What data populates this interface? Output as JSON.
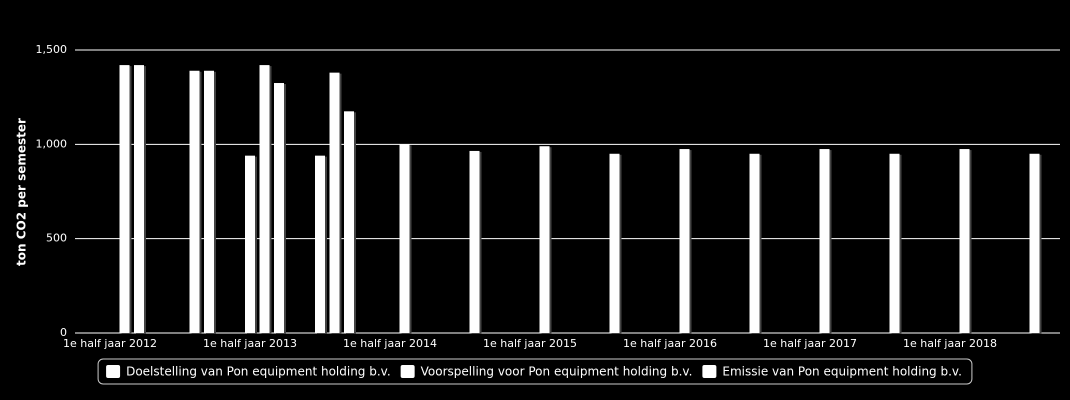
{
  "chart_data": {
    "type": "bar",
    "y_label": "ton CO2 per semester",
    "categories": [
      "1e half jaar 2012",
      null,
      "1e half jaar 2013",
      null,
      "1e half jaar 2014",
      null,
      "1e half jaar 2015",
      null,
      "1e half jaar 2016",
      null,
      "1e half jaar 2017",
      null,
      "1e half jaar 2018",
      null
    ],
    "series": [
      {
        "name": "Doelstelling van Pon equipment holding b.v.",
        "color": "#ffffff",
        "values": [
          null,
          null,
          940,
          940,
          null,
          null,
          null,
          null,
          null,
          null,
          null,
          null,
          null,
          null
        ]
      },
      {
        "name": "Voorspelling voor Pon equipment holding b.v.",
        "color": "#ffffff",
        "values": [
          1420,
          1390,
          1420,
          1380,
          1000,
          965,
          990,
          950,
          975,
          950,
          975,
          950,
          975,
          950
        ]
      },
      {
        "name": "Emissie van Pon equipment holding b.v.",
        "color": "#ffffff",
        "values": [
          1420,
          1390,
          1325,
          1175,
          null,
          null,
          null,
          null,
          null,
          null,
          null,
          null,
          null,
          null
        ]
      }
    ],
    "ylim": [
      0,
      1500
    ],
    "yticks": [
      0,
      500,
      {
        "value": 1000,
        "label": "1,000"
      },
      {
        "value": 1500,
        "label": "1,500"
      }
    ],
    "grid": true
  }
}
